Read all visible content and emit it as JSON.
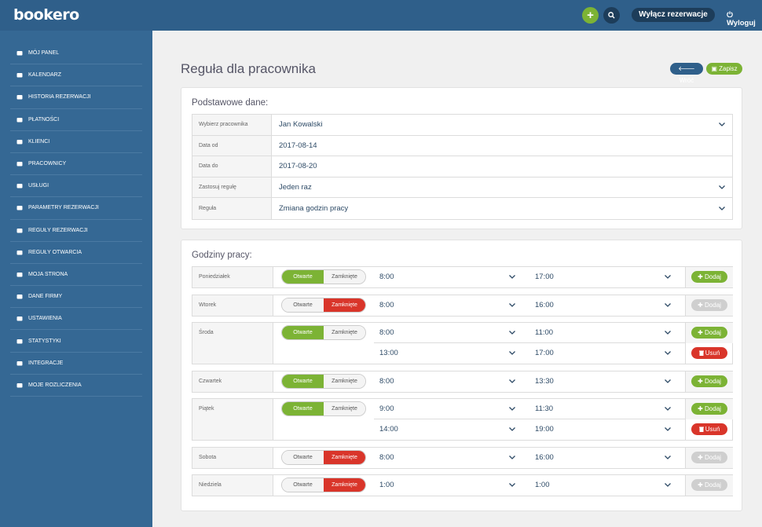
{
  "header": {
    "logo": "bookero",
    "plus": "+",
    "disable_label": "Wyłącz rezerwacje",
    "logout_label": "Wyloguj"
  },
  "sidebar": {
    "items": [
      {
        "label": "MÓJ PANEL",
        "icon": "home-icon"
      },
      {
        "label": "KALENDARZ",
        "icon": "calendar-icon"
      },
      {
        "label": "HISTORIA REZERWACJI",
        "icon": "history-icon"
      },
      {
        "label": "PŁATNOŚCI",
        "icon": "credit-card-icon"
      },
      {
        "label": "KLIENCI",
        "icon": "users-icon"
      },
      {
        "label": "PRACOWNICY",
        "icon": "user-plus-icon"
      },
      {
        "label": "USŁUGI",
        "icon": "cubes-icon"
      },
      {
        "label": "PARAMETRY REZERWACJI",
        "icon": "wrench-icon"
      },
      {
        "label": "REGUŁY REZERWACJI",
        "icon": "exclamation-icon"
      },
      {
        "label": "REGUŁY OTWARCIA",
        "icon": "calendar-grid-icon"
      },
      {
        "label": "MOJA STRONA",
        "icon": "file-icon"
      },
      {
        "label": "DANE FIRMY",
        "icon": "building-icon"
      },
      {
        "label": "USTAWIENIA",
        "icon": "gear-icon"
      },
      {
        "label": "STATYSTYKI",
        "icon": "bar-chart-icon"
      },
      {
        "label": "INTEGRACJE",
        "icon": "external-link-icon"
      },
      {
        "label": "MOJE ROZLICZENIA",
        "icon": "bank-icon"
      }
    ]
  },
  "page": {
    "title": "Reguła dla pracownika",
    "back_label": "Wróć",
    "save_label": "Zapisz"
  },
  "basic": {
    "title": "Podstawowe dane:",
    "rows": [
      {
        "label": "Wybierz pracownika",
        "value": "Jan Kowalski",
        "select": true
      },
      {
        "label": "Data od",
        "value": "2017-08-14",
        "select": false
      },
      {
        "label": "Data do",
        "value": "2017-08-20",
        "select": false
      },
      {
        "label": "Zastosuj regułę",
        "value": "Jeden raz",
        "select": true
      },
      {
        "label": "Reguła",
        "value": "Zmiana godzin pracy",
        "select": true
      }
    ]
  },
  "hours": {
    "title": "Godziny pracy:",
    "open_label": "Otwarte",
    "closed_label": "Zamknięte",
    "add_label": "Dodaj",
    "remove_label": "Usuń",
    "days": [
      {
        "name": "Poniedziałek",
        "status": "open",
        "slots": [
          [
            "8:00",
            "17:00"
          ]
        ]
      },
      {
        "name": "Wtorek",
        "status": "closed",
        "slots": [
          [
            "8:00",
            "16:00"
          ]
        ]
      },
      {
        "name": "Środa",
        "status": "open",
        "slots": [
          [
            "8:00",
            "11:00"
          ],
          [
            "13:00",
            "17:00"
          ]
        ]
      },
      {
        "name": "Czwartek",
        "status": "open",
        "slots": [
          [
            "8:00",
            "13:30"
          ]
        ]
      },
      {
        "name": "Piątek",
        "status": "open",
        "slots": [
          [
            "9:00",
            "11:30"
          ],
          [
            "14:00",
            "19:00"
          ]
        ]
      },
      {
        "name": "Sobota",
        "status": "closed",
        "slots": [
          [
            "8:00",
            "16:00"
          ]
        ]
      },
      {
        "name": "Niedziela",
        "status": "closed",
        "slots": [
          [
            "1:00",
            "1:00"
          ]
        ]
      }
    ]
  },
  "colors": {
    "topbar": "#2f5f8a",
    "sidebar": "#356894",
    "accent_green": "#7cb335",
    "danger_red": "#d9352a"
  }
}
